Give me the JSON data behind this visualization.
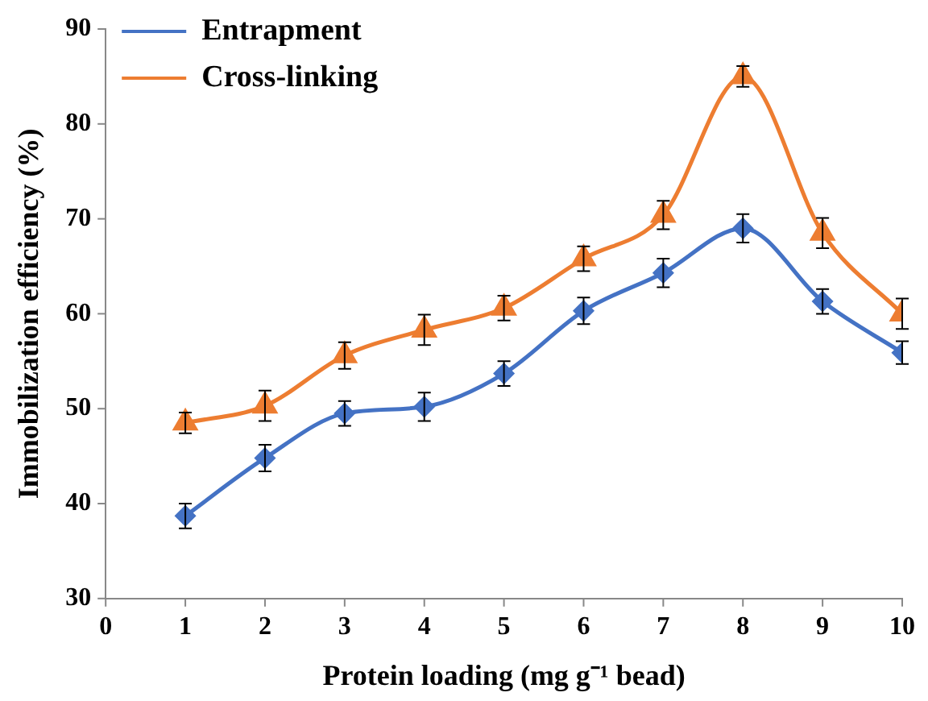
{
  "chart_data": {
    "type": "line",
    "xlabel": "Protein loading (mg g⁻¹ bead)",
    "ylabel": "Immobilization efficiency (%)",
    "x": [
      1,
      2,
      3,
      4,
      5,
      6,
      7,
      8,
      9,
      10
    ],
    "series": [
      {
        "name": "Entrapment",
        "color": "#4472c4",
        "marker": "diamond",
        "values": [
          38.7,
          44.8,
          49.5,
          50.2,
          53.7,
          60.3,
          64.3,
          69.0,
          61.3,
          55.9
        ],
        "errors": [
          1.3,
          1.4,
          1.3,
          1.5,
          1.3,
          1.4,
          1.5,
          1.5,
          1.3,
          1.2
        ]
      },
      {
        "name": "Cross-linking",
        "color": "#ed7d31",
        "marker": "triangle",
        "values": [
          48.5,
          50.3,
          55.6,
          58.3,
          60.6,
          65.8,
          70.4,
          85.0,
          68.5,
          60.0
        ],
        "errors": [
          1.1,
          1.6,
          1.4,
          1.6,
          1.3,
          1.3,
          1.5,
          1.1,
          1.6,
          1.6
        ]
      }
    ],
    "xlim": [
      0,
      10
    ],
    "xticks": [
      0,
      1,
      2,
      3,
      4,
      5,
      6,
      7,
      8,
      9,
      10
    ],
    "ylim": [
      30,
      90
    ],
    "yticks": [
      30,
      40,
      50,
      60,
      70,
      80,
      90
    ],
    "grid": false,
    "legend": "top left",
    "line_style": "solid"
  }
}
